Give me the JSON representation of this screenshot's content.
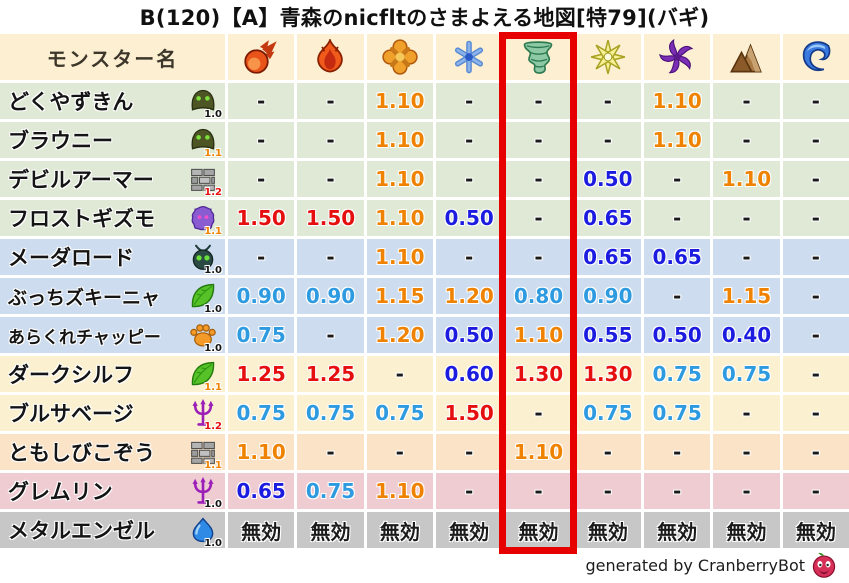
{
  "title": "B(120)【A】青森のnicfltのさまよえる地図[特79](バギ)",
  "table": {
    "name_column_header": "モンスター名",
    "element_columns": [
      {
        "icon": "fireball-icon"
      },
      {
        "icon": "flame-icon"
      },
      {
        "icon": "explosion-flower-icon"
      },
      {
        "icon": "snowflake-icon"
      },
      {
        "icon": "tornado-icon"
      },
      {
        "icon": "spark-star-icon"
      },
      {
        "icon": "dark-pinwheel-icon"
      },
      {
        "icon": "mountain-icon"
      },
      {
        "icon": "wave-icon"
      }
    ],
    "highlighted_column_index": 4,
    "rows": [
      {
        "name": "どくやずきん",
        "icon": "hood-icon",
        "level": "1.0",
        "bg": "green",
        "values": [
          "-",
          "-",
          "1.10",
          "-",
          "-",
          "-",
          "1.10",
          "-",
          "-"
        ]
      },
      {
        "name": "ブラウニー",
        "icon": "hood-icon",
        "level": "1.1",
        "bg": "green",
        "values": [
          "-",
          "-",
          "1.10",
          "-",
          "-",
          "-",
          "1.10",
          "-",
          "-"
        ]
      },
      {
        "name": "デビルアーマー",
        "icon": "brick-icon",
        "level": "1.2",
        "bg": "green",
        "values": [
          "-",
          "-",
          "1.10",
          "-",
          "-",
          "0.50",
          "-",
          "1.10",
          "-"
        ]
      },
      {
        "name": "フロストギズモ",
        "icon": "blob-icon",
        "level": "1.1",
        "bg": "green",
        "values": [
          "1.50",
          "1.50",
          "1.10",
          "0.50",
          "-",
          "0.65",
          "-",
          "-",
          "-"
        ]
      },
      {
        "name": "メーダロード",
        "icon": "fly-icon",
        "level": "1.0",
        "bg": "blue",
        "values": [
          "-",
          "-",
          "1.10",
          "-",
          "-",
          "0.65",
          "0.65",
          "-",
          "-"
        ]
      },
      {
        "name": "ぶっちズキーニャ",
        "icon": "leaf-icon",
        "level": "1.0",
        "bg": "blue",
        "values": [
          "0.90",
          "0.90",
          "1.15",
          "1.20",
          "0.80",
          "0.90",
          "-",
          "1.15",
          "-"
        ]
      },
      {
        "name": "あらくれチャッピー",
        "icon": "paw-icon",
        "level": "1.0",
        "bg": "blue",
        "values": [
          "0.75",
          "-",
          "1.20",
          "0.50",
          "1.10",
          "0.55",
          "0.50",
          "0.40",
          "-"
        ]
      },
      {
        "name": "ダークシルフ",
        "icon": "leaf-icon",
        "level": "1.1",
        "bg": "cream",
        "values": [
          "1.25",
          "1.25",
          "-",
          "0.60",
          "1.30",
          "1.30",
          "0.75",
          "0.75",
          "-"
        ]
      },
      {
        "name": "ブルサベージ",
        "icon": "trident-icon",
        "level": "1.2",
        "bg": "cream",
        "values": [
          "0.75",
          "0.75",
          "0.75",
          "1.50",
          "-",
          "0.75",
          "0.75",
          "-",
          "-"
        ]
      },
      {
        "name": "ともしびこぞう",
        "icon": "brick-icon",
        "level": "1.1",
        "bg": "peach",
        "values": [
          "1.10",
          "-",
          "-",
          "-",
          "1.10",
          "-",
          "-",
          "-",
          "-"
        ]
      },
      {
        "name": "グレムリン",
        "icon": "trident-icon",
        "level": "1.0",
        "bg": "pink",
        "values": [
          "0.65",
          "0.75",
          "1.10",
          "-",
          "-",
          "-",
          "-",
          "-",
          "-"
        ]
      },
      {
        "name": "メタルエンゼル",
        "icon": "slime-icon",
        "level": "1.0",
        "bg": "gray",
        "values": [
          "無効",
          "無効",
          "無効",
          "無効",
          "無効",
          "無効",
          "無効",
          "無効",
          "無効"
        ]
      }
    ]
  },
  "palette": {
    "header": "#fdf0d2",
    "green": "#dfe9d6",
    "blue": "#cddcee",
    "cream": "#fbf0d0",
    "peach": "#fae3c6",
    "pink": "#eeccd2",
    "gray": "#c7c7c7"
  },
  "colors": {
    "strong_weakness_red": "#e60f0f",
    "weakness_orange": "#ef8200",
    "resist_light_blue": "#2e9ae0",
    "strong_resist_dark_blue": "#1c1ce0",
    "neutral_black": "#1a1a1a",
    "highlight_box_red": "#e60000"
  },
  "level_colors": {
    "1.0": "#141414",
    "1.1": "#ef8200",
    "1.2": "#e60f0f"
  },
  "footer": {
    "text": "generated by CranberryBot",
    "icon": "cranberry-icon"
  }
}
